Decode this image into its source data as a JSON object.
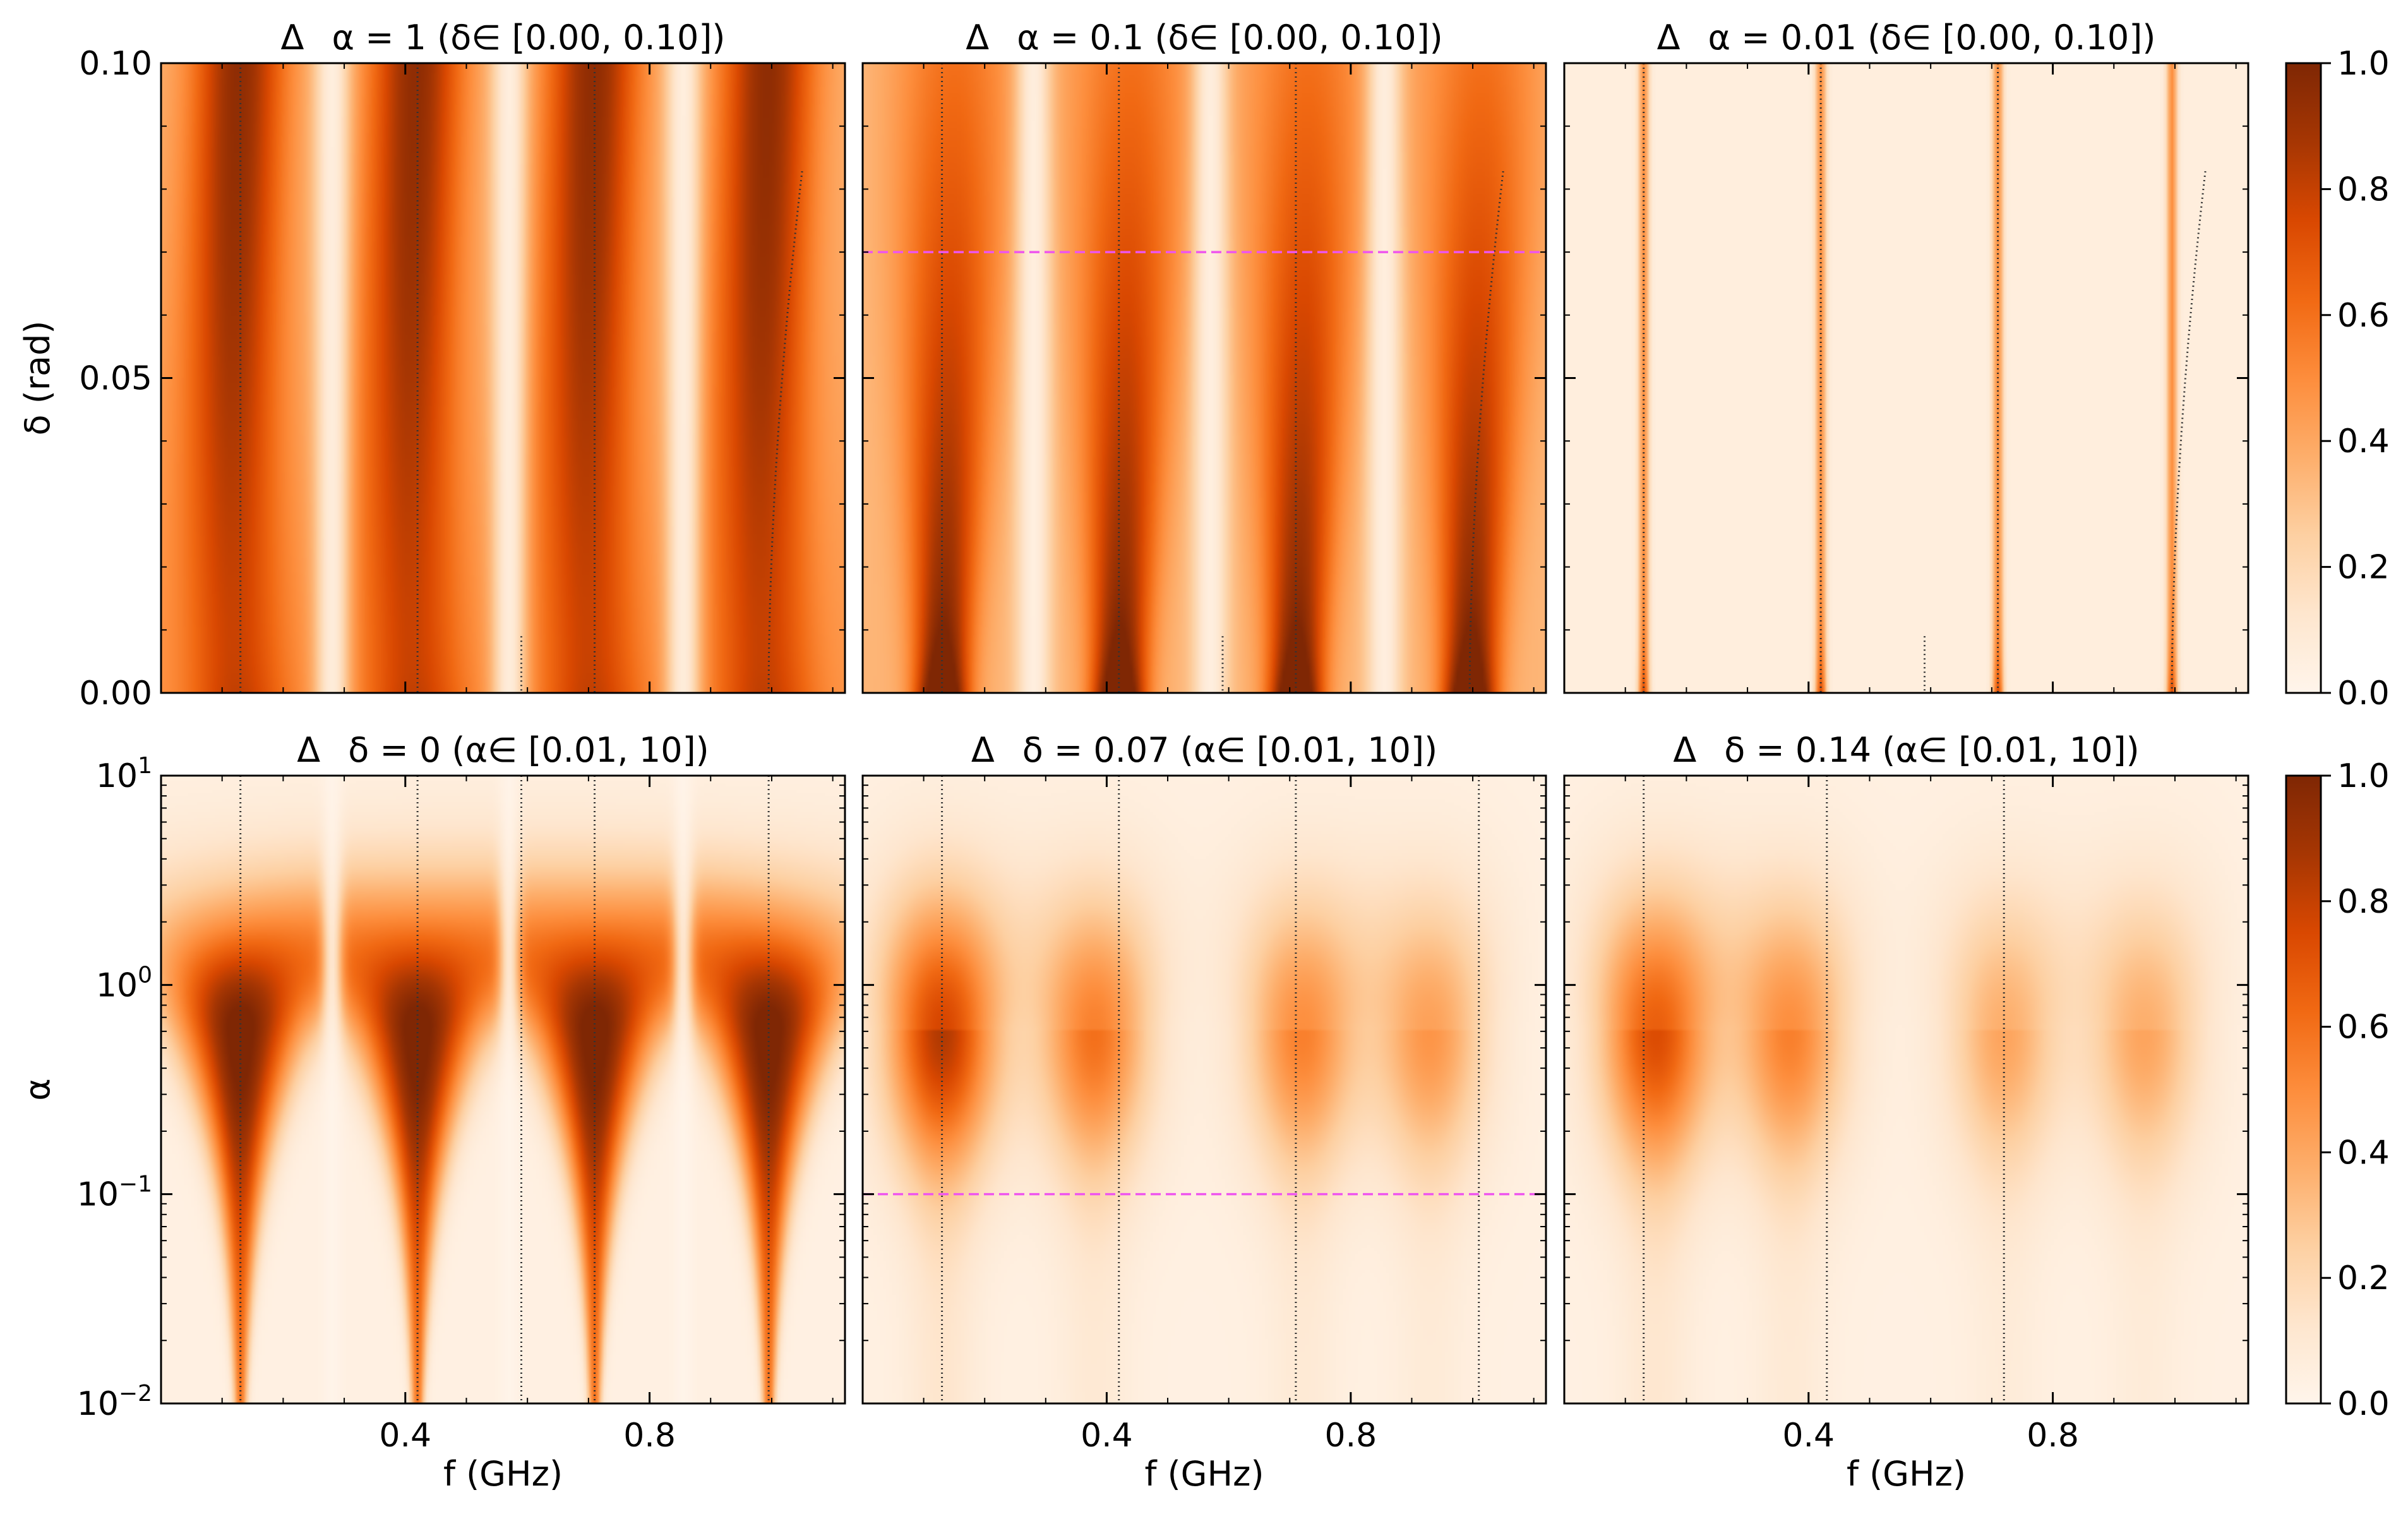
{
  "figure": {
    "colorbar_ticks": [
      "0.0",
      "0.2",
      "0.4",
      "0.6",
      "0.8",
      "1.0"
    ],
    "colorbar_range": [
      0,
      1
    ],
    "colormap": [
      "#fff5eb",
      "#fee6ce",
      "#fdd0a2",
      "#fdae6b",
      "#fd8d3c",
      "#f16913",
      "#d94801",
      "#a63603",
      "#7f2704"
    ],
    "guide_line_color": "#ee55ee",
    "dotted_line_color": "#333333"
  },
  "chart_data": [
    {
      "type": "heatmap",
      "delta_label": "Δ",
      "title": "α = 1  (δ∈ [0.00, 0.10])",
      "xlabel": "",
      "ylabel": "δ (rad)",
      "xlim": [
        0.0,
        1.12
      ],
      "ylim": [
        0.0,
        0.1
      ],
      "yscale": "linear",
      "yticks": [
        {
          "value": 0.0,
          "label": "0.00"
        },
        {
          "value": 0.05,
          "label": "0.05"
        },
        {
          "value": 0.1,
          "label": "0.10"
        }
      ],
      "xticks": [],
      "resonances_ghz": [
        0.13,
        0.42,
        0.71,
        0.995
      ],
      "minima_ghz": [
        0.28,
        0.57,
        0.855
      ],
      "peak_width": 0.055,
      "growth": 0.0,
      "base": 0.45,
      "peak": 0.95,
      "shift": 0.0,
      "bottom_boost": 0.1,
      "upper_fade": 0.0,
      "dotted_lines": [
        {
          "x": 0.13
        },
        {
          "x": 0.42
        },
        {
          "x": 0.71
        },
        {
          "curve": "mode4"
        },
        {
          "x": 0.59,
          "y_top": 0.009
        }
      ]
    },
    {
      "type": "heatmap",
      "delta_label": "Δ",
      "title": "α = 0.1  (δ∈ [0.00, 0.10])",
      "xlabel": "",
      "ylabel": "",
      "xlim": [
        0.0,
        1.12
      ],
      "ylim": [
        0.0,
        0.1
      ],
      "yscale": "linear",
      "yticks": [],
      "xticks": [],
      "resonances_ghz": [
        0.13,
        0.42,
        0.71,
        0.995
      ],
      "minima_ghz": [
        0.28,
        0.57,
        0.855
      ],
      "peak_width": 0.03,
      "growth": 0.5,
      "base": 0.35,
      "peak": 1.0,
      "shift": 0.02,
      "bottom_boost": 0.45,
      "upper_fade": 0.2,
      "guide_line": {
        "axis": "y",
        "value": 0.07
      },
      "dotted_lines": [
        {
          "x": 0.13
        },
        {
          "x": 0.42
        },
        {
          "x": 0.71
        },
        {
          "curve": "mode4"
        },
        {
          "x": 0.59,
          "y_top": 0.009
        }
      ]
    },
    {
      "type": "heatmap",
      "delta_label": "Δ",
      "title": "α = 0.01  (δ∈ [0.00, 0.10])",
      "xlabel": "",
      "ylabel": "",
      "xlim": [
        0.0,
        1.12
      ],
      "ylim": [
        0.0,
        0.1
      ],
      "yscale": "linear",
      "yticks": [],
      "xticks": [],
      "resonances_ghz": [
        0.13,
        0.42,
        0.71,
        0.995
      ],
      "minima_ghz": [],
      "peak_width": 0.006,
      "growth": 0.0,
      "base": 0.06,
      "peak": 0.5,
      "shift": 0.0,
      "bottom_boost": 0.6,
      "upper_fade": 0.0,
      "dotted_lines": [
        {
          "x": 0.13
        },
        {
          "x": 0.42
        },
        {
          "x": 0.71
        },
        {
          "curve": "mode4"
        },
        {
          "x": 0.59,
          "y_top": 0.009
        }
      ]
    },
    {
      "type": "heatmap",
      "delta_label": "Δ",
      "title": "δ = 0  (α∈ [0.01, 10])",
      "xlabel": "f (GHz)",
      "ylabel": "α",
      "xlim": [
        0.0,
        1.12
      ],
      "ylim": [
        0.01,
        10
      ],
      "yscale": "log",
      "yticks": [
        {
          "value": 0.01,
          "base": "10",
          "exp": "−2"
        },
        {
          "value": 0.1,
          "base": "10",
          "exp": "−1"
        },
        {
          "value": 1,
          "base": "10",
          "exp": "0"
        },
        {
          "value": 10,
          "base": "10",
          "exp": "1"
        }
      ],
      "xticks": [
        {
          "value": 0.4,
          "label": "0.4"
        },
        {
          "value": 0.8,
          "label": "0.8"
        }
      ],
      "resonances_ghz": [
        0.13,
        0.42,
        0.71,
        0.995
      ],
      "minima_ghz": [
        0.28,
        0.57,
        0.855
      ],
      "peak_alpha": 0.6,
      "amp": 1.0,
      "spread": 0.3,
      "dotted_lines": [
        {
          "x": 0.13
        },
        {
          "x": 0.42
        },
        {
          "x": 0.59
        },
        {
          "x": 0.71
        },
        {
          "x": 0.995
        }
      ]
    },
    {
      "type": "heatmap",
      "delta_label": "Δ",
      "title": "δ = 0.07  (α∈ [0.01, 10])",
      "xlabel": "f (GHz)",
      "ylabel": "",
      "xlim": [
        0.0,
        1.12
      ],
      "ylim": [
        0.01,
        10
      ],
      "yscale": "log",
      "yticks": [],
      "xticks": [
        {
          "value": 0.4,
          "label": "0.4"
        },
        {
          "value": 0.8,
          "label": "0.8"
        }
      ],
      "resonances_ghz": [
        0.13,
        0.38,
        0.72,
        0.93
      ],
      "minima_ghz": [],
      "peak_alpha": 0.6,
      "amp": 0.72,
      "spread": 0.0,
      "blob_amps": [
        0.72,
        0.5,
        0.45,
        0.38
      ],
      "guide_line": {
        "axis": "y",
        "value": 0.1
      },
      "dotted_lines": [
        {
          "x": 0.13
        },
        {
          "x": 0.42
        },
        {
          "x": 0.71
        },
        {
          "x": 1.01
        }
      ]
    },
    {
      "type": "heatmap",
      "delta_label": "Δ",
      "title": "δ = 0.14  (α∈ [0.01, 10])",
      "xlabel": "f (GHz)",
      "ylabel": "",
      "xlim": [
        0.0,
        1.12
      ],
      "ylim": [
        0.01,
        10
      ],
      "yscale": "log",
      "yticks": [],
      "xticks": [
        {
          "value": 0.4,
          "label": "0.4"
        },
        {
          "value": 0.8,
          "label": "0.8"
        }
      ],
      "resonances_ghz": [
        0.15,
        0.37,
        0.72,
        0.95
      ],
      "minima_ghz": [],
      "peak_alpha": 0.6,
      "amp": 0.62,
      "spread": 0.0,
      "blob_amps": [
        0.62,
        0.45,
        0.33,
        0.33
      ],
      "dotted_lines": [
        {
          "x": 0.13
        },
        {
          "x": 0.43
        },
        {
          "x": 0.72
        }
      ]
    }
  ]
}
